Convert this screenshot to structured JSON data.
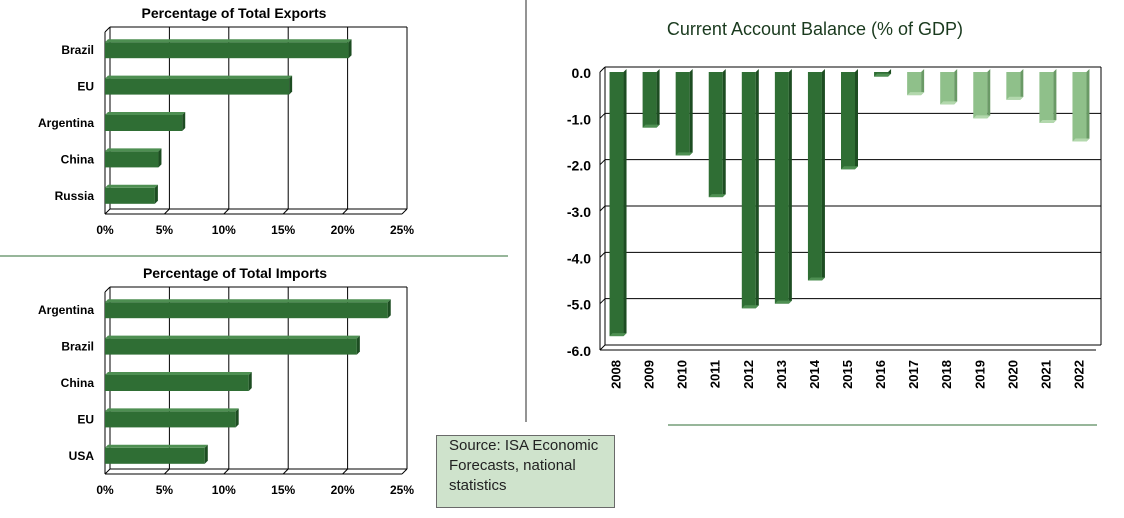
{
  "source": "Source: ISA Economic Forecasts, national statistics",
  "colors": {
    "dark": "#2f6e34",
    "dark_top": "#4e8f52",
    "dark_side": "#1d4d22",
    "light": "#8fc08a",
    "light_top": "#b3d8ad",
    "light_side": "#6a9a66",
    "floor": "#e2efdc",
    "grid": "#000000"
  },
  "chart_data": [
    {
      "id": "exports",
      "type": "bar",
      "orientation": "horizontal",
      "title": "Percentage of Total Exports",
      "categories": [
        "Brazil",
        "EU",
        "Argentina",
        "China",
        "Russia"
      ],
      "values": [
        20.5,
        15.5,
        6.5,
        4.5,
        4.2
      ],
      "xlim": [
        0,
        25
      ],
      "ticks": [
        0,
        5,
        10,
        15,
        20,
        25
      ],
      "tick_labels": [
        "0%",
        "5%",
        "10%",
        "15%",
        "20%",
        "25%"
      ]
    },
    {
      "id": "imports",
      "type": "bar",
      "orientation": "horizontal",
      "title": "Percentage of Total Imports",
      "categories": [
        "Argentina",
        "Brazil",
        "China",
        "EU",
        "USA"
      ],
      "values": [
        23.8,
        21.2,
        12.1,
        11.0,
        8.4
      ],
      "xlim": [
        0,
        25
      ],
      "ticks": [
        0,
        5,
        10,
        15,
        20,
        25
      ],
      "tick_labels": [
        "0%",
        "5%",
        "10%",
        "15%",
        "20%",
        "25%"
      ]
    },
    {
      "id": "current-account",
      "type": "bar",
      "orientation": "vertical",
      "title": "Current Account Balance (% of GDP)",
      "categories": [
        "2008",
        "2009",
        "2010",
        "2011",
        "2012",
        "2013",
        "2014",
        "2015",
        "2016",
        "2017",
        "2018",
        "2019",
        "2020",
        "2021",
        "2022"
      ],
      "values": [
        -5.7,
        -1.2,
        -1.8,
        -2.7,
        -5.1,
        -5.0,
        -4.5,
        -2.1,
        -0.1,
        -0.5,
        -0.7,
        -1.0,
        -0.6,
        -1.1,
        -1.5
      ],
      "forecast_from": "2017",
      "ylim": [
        -6,
        0
      ],
      "ticks": [
        0,
        -1,
        -2,
        -3,
        -4,
        -5,
        -6
      ],
      "tick_labels": [
        "0.0",
        "-1.0",
        "-2.0",
        "-3.0",
        "-4.0",
        "-5.0",
        "-6.0"
      ]
    }
  ]
}
